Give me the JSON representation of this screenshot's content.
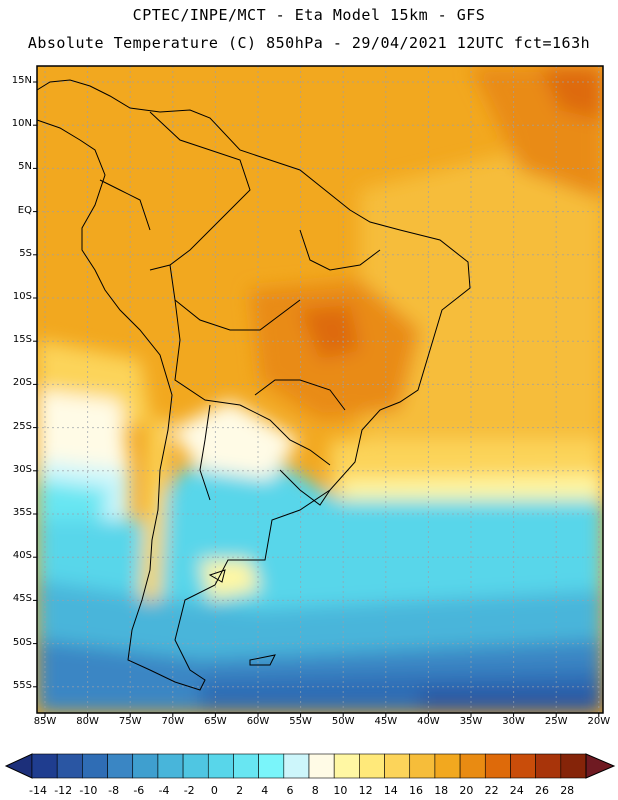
{
  "title_line1": "CPTEC/INPE/MCT -  Eta Model 15km - GFS",
  "title_line2": "Absolute Temperature (C) 850hPa - 29/04/2021 12UTC fct=163h",
  "lat_labels": [
    "15N",
    "10N",
    "5N",
    "EQ",
    "5S",
    "10S",
    "15S",
    "20S",
    "25S",
    "30S",
    "35S",
    "40S",
    "45S",
    "50S",
    "55S"
  ],
  "lon_labels": [
    "85W",
    "80W",
    "75W",
    "70W",
    "65W",
    "60W",
    "55W",
    "50W",
    "45W",
    "40W",
    "35W",
    "30W",
    "25W",
    "20W"
  ],
  "colorbar": {
    "labels": [
      "-14",
      "-12",
      "-10",
      "-8",
      "-6",
      "-4",
      "-2",
      "0",
      "2",
      "4",
      "6",
      "8",
      "10",
      "12",
      "14",
      "16",
      "18",
      "20",
      "22",
      "24",
      "26",
      "28"
    ],
    "colors": [
      "#1f3d8f",
      "#2a56a3",
      "#2f6db5",
      "#3a86c4",
      "#3f9fcf",
      "#48b5da",
      "#4fc6e2",
      "#58d6ea",
      "#68e6f2",
      "#7af5fa",
      "#cdf6fb",
      "#fffbe6",
      "#fff7a3",
      "#ffe97a",
      "#fcd45a",
      "#f6bd3a",
      "#f2a81f",
      "#e98b12",
      "#de6a0a",
      "#c94d0a",
      "#a8340a",
      "#852409"
    ],
    "under_color": "#1c2f7a",
    "over_color": "#6f1a22"
  }
}
